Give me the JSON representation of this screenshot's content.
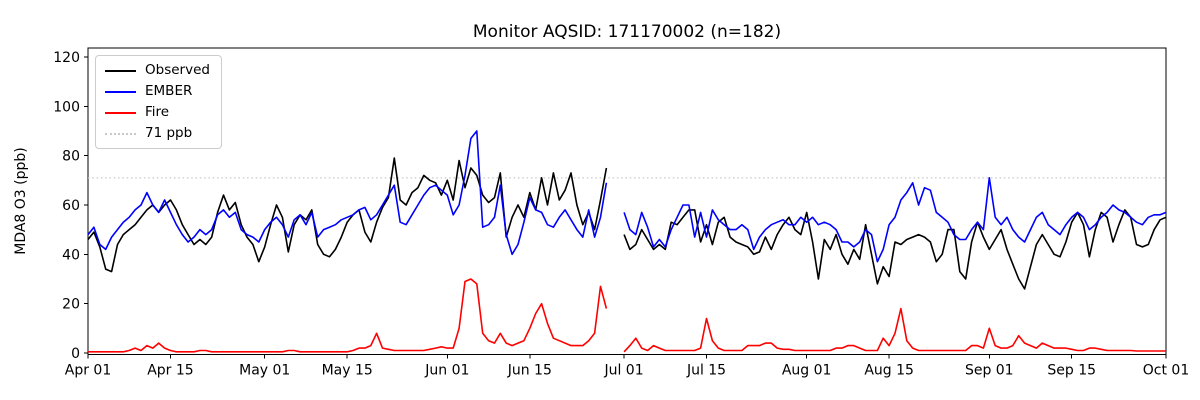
{
  "figure": {
    "title": "Monitor AQSID: 171170002 (n=182)",
    "ylabel": "MDA8 O3 (ppb)"
  },
  "legend": {
    "position": "upper left",
    "items": [
      {
        "id": "observed",
        "label": "Observed",
        "color": "#000000",
        "style": "solid"
      },
      {
        "id": "ember",
        "label": "EMBER",
        "color": "#0000ff",
        "style": "solid"
      },
      {
        "id": "fire",
        "label": "Fire",
        "color": "#ff0000",
        "style": "solid"
      },
      {
        "id": "threshold",
        "label": "71 ppb",
        "color": "#c8c8c8",
        "style": "dotted"
      }
    ]
  },
  "chart_data": {
    "type": "line",
    "title": "Monitor AQSID: 171170002 (n=182)",
    "xlabel": "",
    "ylabel": "MDA8 O3 (ppb)",
    "grid": false,
    "legend_position": "upper left",
    "ylim": [
      -1,
      124
    ],
    "y_ticks": [
      0,
      20,
      40,
      60,
      80,
      100,
      120
    ],
    "x_start_label": "Apr 01",
    "x_end_label": "Oct 01",
    "n_days": 184,
    "x_tick_labels": [
      "Apr 01",
      "Apr 15",
      "May 01",
      "May 15",
      "Jun 01",
      "Jun 15",
      "Jul 01",
      "Jul 15",
      "Aug 01",
      "Aug 15",
      "Sep 01",
      "Sep 15",
      "Oct 01"
    ],
    "x_tick_day_index": [
      0,
      14,
      30,
      44,
      61,
      75,
      91,
      105,
      122,
      136,
      153,
      167,
      183
    ],
    "missing_days": [
      "Jun 29",
      "Jun 30"
    ],
    "threshold": {
      "value": 71,
      "label": "71 ppb",
      "color": "#c8c8c8",
      "style": "dotted"
    },
    "series": [
      {
        "name": "Observed",
        "color": "#000000",
        "values": [
          46,
          49,
          43,
          34,
          33,
          44,
          48,
          50,
          52,
          55,
          58,
          60,
          57,
          60,
          62,
          58,
          52,
          48,
          44,
          46,
          44,
          47,
          57,
          64,
          58,
          61,
          52,
          47,
          44,
          37,
          43,
          52,
          60,
          55,
          41,
          52,
          56,
          54,
          58,
          44,
          40,
          39,
          42,
          47,
          53,
          56,
          58,
          49,
          45,
          53,
          59,
          63,
          79,
          62,
          60,
          65,
          67,
          72,
          70,
          69,
          64,
          70,
          62,
          78,
          67,
          75,
          72,
          64,
          61,
          63,
          73,
          47,
          55,
          60,
          55,
          65,
          58,
          71,
          60,
          73,
          62,
          66,
          73,
          60,
          52,
          57,
          50,
          62,
          75,
          null,
          null,
          48,
          42,
          44,
          50,
          46,
          42,
          44,
          42,
          53,
          52,
          55,
          58,
          58,
          45,
          52,
          44,
          53,
          55,
          47,
          45,
          44,
          43,
          40,
          41,
          47,
          42,
          48,
          52,
          55,
          50,
          48,
          57,
          45,
          30,
          46,
          42,
          48,
          40,
          36,
          42,
          38,
          52,
          40,
          28,
          35,
          31,
          45,
          44,
          46,
          47,
          48,
          47,
          45,
          37,
          40,
          50,
          50,
          33,
          30,
          45,
          53,
          47,
          42,
          46,
          50,
          42,
          36,
          30,
          26,
          35,
          44,
          48,
          44,
          40,
          39,
          45,
          53,
          57,
          52,
          39,
          50,
          57,
          55,
          45,
          52,
          58,
          55,
          44,
          43,
          44,
          50,
          54,
          55
        ]
      },
      {
        "name": "EMBER",
        "color": "#0000ff",
        "values": [
          48,
          51,
          44,
          42,
          47,
          50,
          53,
          55,
          58,
          60,
          65,
          60,
          57,
          62,
          57,
          52,
          48,
          45,
          47,
          50,
          48,
          50,
          56,
          58,
          55,
          57,
          50,
          48,
          47,
          45,
          50,
          53,
          55,
          52,
          47,
          54,
          56,
          52,
          57,
          47,
          50,
          51,
          52,
          54,
          55,
          56,
          58,
          59,
          54,
          56,
          60,
          64,
          68,
          53,
          52,
          56,
          60,
          64,
          67,
          68,
          66,
          64,
          56,
          60,
          72,
          87,
          90,
          51,
          52,
          55,
          68,
          48,
          40,
          44,
          53,
          63,
          58,
          57,
          52,
          51,
          55,
          58,
          54,
          50,
          47,
          58,
          47,
          55,
          69,
          null,
          null,
          57,
          50,
          48,
          57,
          51,
          43,
          46,
          43,
          50,
          55,
          60,
          60,
          47,
          57,
          47,
          58,
          54,
          52,
          50,
          50,
          52,
          50,
          42,
          47,
          50,
          52,
          53,
          54,
          52,
          52,
          55,
          53,
          55,
          52,
          53,
          52,
          50,
          45,
          45,
          43,
          45,
          50,
          48,
          37,
          42,
          52,
          55,
          62,
          65,
          69,
          60,
          67,
          66,
          57,
          55,
          53,
          48,
          46,
          46,
          50,
          53,
          50,
          71,
          55,
          52,
          55,
          50,
          47,
          45,
          50,
          55,
          57,
          52,
          50,
          48,
          52,
          55,
          57,
          55,
          50,
          52,
          55,
          57,
          60,
          58,
          57,
          55,
          53,
          52,
          55,
          56,
          56,
          57
        ]
      },
      {
        "name": "Fire",
        "color": "#ff0000",
        "values": [
          0.5,
          0.5,
          0.5,
          0.5,
          0.5,
          0.5,
          0.5,
          1,
          2,
          1,
          3,
          2,
          4,
          2,
          1,
          0.5,
          0.5,
          0.5,
          0.5,
          1,
          1,
          0.5,
          0.5,
          0.5,
          0.5,
          0.5,
          0.5,
          0.5,
          0.5,
          0.5,
          0.5,
          0.5,
          0.5,
          0.5,
          1,
          1,
          0.5,
          0.5,
          0.5,
          0.5,
          0.5,
          0.5,
          0.5,
          0.5,
          0.5,
          1,
          2,
          2,
          3,
          8,
          2,
          1.5,
          1,
          1,
          1,
          1,
          1,
          1,
          1.5,
          2,
          2.5,
          2,
          2,
          10,
          29,
          30,
          28,
          8,
          5,
          4,
          8,
          4,
          3,
          4,
          5,
          10,
          16,
          20,
          12,
          6,
          5,
          4,
          3,
          3,
          3,
          5,
          8,
          27,
          18,
          null,
          null,
          0.5,
          3,
          6,
          2,
          1,
          3,
          2,
          1,
          1,
          1,
          1,
          1,
          1,
          2,
          14,
          5,
          2,
          1,
          1,
          1,
          1,
          3,
          3,
          3,
          4,
          4,
          2,
          1.5,
          1.5,
          1,
          1,
          1,
          1,
          1,
          1,
          1,
          2,
          2,
          3,
          3,
          2,
          1,
          1,
          1,
          6,
          3,
          8,
          18,
          5,
          2,
          1,
          1,
          1,
          1,
          1,
          1,
          1,
          1,
          1,
          3,
          3,
          2,
          10,
          3,
          2,
          2,
          3,
          7,
          4,
          3,
          2,
          4,
          3,
          2,
          2,
          2,
          1.5,
          1,
          1,
          2,
          2,
          1.5,
          1,
          1,
          1,
          1,
          1,
          0.8,
          0.8,
          0.8,
          0.8,
          0.8,
          0.8
        ]
      }
    ]
  }
}
